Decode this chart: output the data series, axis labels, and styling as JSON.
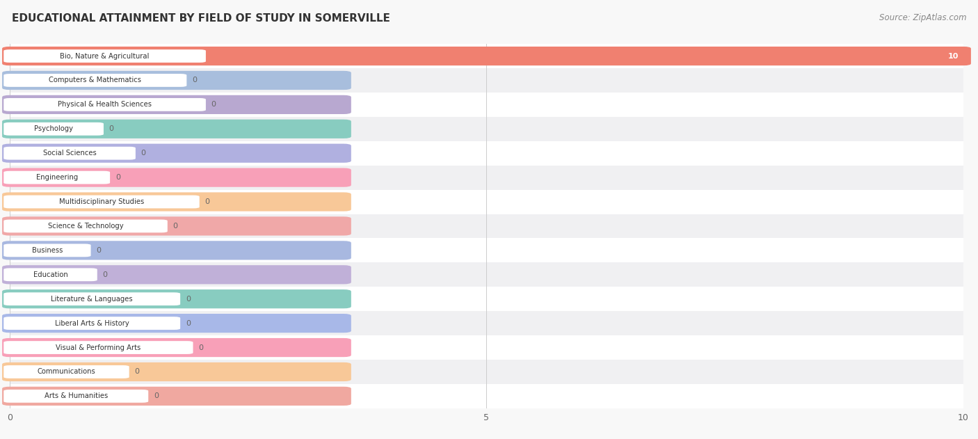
{
  "title": "EDUCATIONAL ATTAINMENT BY FIELD OF STUDY IN SOMERVILLE",
  "source": "Source: ZipAtlas.com",
  "categories": [
    "Bio, Nature & Agricultural",
    "Computers & Mathematics",
    "Physical & Health Sciences",
    "Psychology",
    "Social Sciences",
    "Engineering",
    "Multidisciplinary Studies",
    "Science & Technology",
    "Business",
    "Education",
    "Literature & Languages",
    "Liberal Arts & History",
    "Visual & Performing Arts",
    "Communications",
    "Arts & Humanities"
  ],
  "values": [
    10,
    0,
    0,
    0,
    0,
    0,
    0,
    0,
    0,
    0,
    0,
    0,
    0,
    0,
    0
  ],
  "bar_colors": [
    "#f08070",
    "#a8bedd",
    "#b8a8d0",
    "#88ccc0",
    "#b0b0e0",
    "#f8a0b8",
    "#f8c898",
    "#f0a8a8",
    "#a8b8e0",
    "#c0b0d8",
    "#88ccc0",
    "#a8b8e8",
    "#f8a0b8",
    "#f8c898",
    "#f0a8a0"
  ],
  "bg_bar_width": 3.5,
  "xlim": [
    0,
    10
  ],
  "xticks": [
    0,
    5,
    10
  ],
  "background_color": "#f8f8f8",
  "row_colors": [
    "#ffffff",
    "#f0f0f2"
  ],
  "title_fontsize": 11,
  "source_fontsize": 8.5
}
